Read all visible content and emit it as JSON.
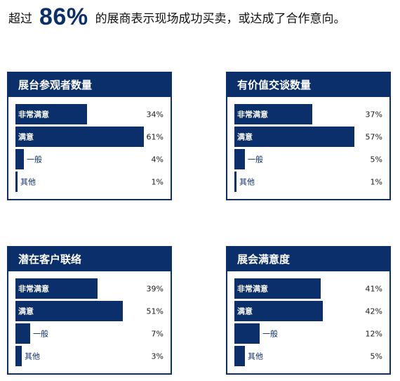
{
  "headline": {
    "prefix": "超过",
    "highlight": "86%",
    "suffix": "的展商表示现场成功买卖，或达成了合作意向。"
  },
  "colors": {
    "primary": "#0b2f6b",
    "background": "#ffffff"
  },
  "chart_data": [
    {
      "type": "bar",
      "title": "展台参观者数量",
      "categories": [
        "非常满意",
        "满意",
        "一般",
        "其他"
      ],
      "values": [
        34,
        61,
        4,
        1
      ],
      "value_labels": [
        "34%",
        "61%",
        "4%",
        "1%"
      ],
      "unit": "%",
      "xlim": [
        0,
        100
      ]
    },
    {
      "type": "bar",
      "title": "有价值交谈数量",
      "categories": [
        "非常满意",
        "满意",
        "一般",
        "其他"
      ],
      "values": [
        37,
        57,
        5,
        1
      ],
      "value_labels": [
        "37%",
        "57%",
        "5%",
        "1%"
      ],
      "unit": "%",
      "xlim": [
        0,
        100
      ]
    },
    {
      "type": "bar",
      "title": "潜在客户联络",
      "categories": [
        "非常满意",
        "满意",
        "一般",
        "其他"
      ],
      "values": [
        39,
        51,
        7,
        3
      ],
      "value_labels": [
        "39%",
        "51%",
        "7%",
        "3%"
      ],
      "unit": "%",
      "xlim": [
        0,
        100
      ]
    },
    {
      "type": "bar",
      "title": "展会满意度",
      "categories": [
        "非常满意",
        "满意",
        "一般",
        "其他"
      ],
      "values": [
        41,
        42,
        12,
        5
      ],
      "value_labels": [
        "41%",
        "42%",
        "12%",
        "5%"
      ],
      "unit": "%",
      "xlim": [
        0,
        100
      ]
    }
  ]
}
